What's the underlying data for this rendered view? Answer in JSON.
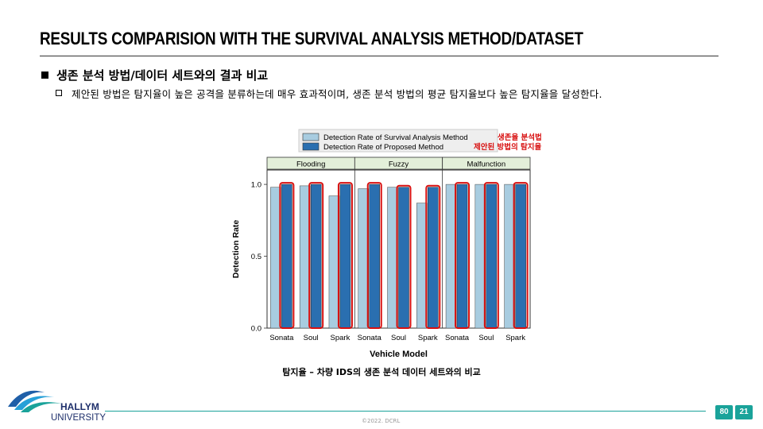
{
  "slide": {
    "title": "RESULTS COMPARISION WITH THE SURVIVAL ANALYSIS METHOD/DATASET",
    "bullet1": "생존 분석 방법/데이터 세트와의 결과 비교",
    "bullet2": "제안된 방법은 탐지율이 높은 공격을 분류하는데 매우 효과적이며, 생존 분석 방법의 평균 탐지율보다 높은 탐지율을 달성한다.",
    "caption": "탐지율 – 차량 IDS의 생존 분석 데이터 세트와의 비교",
    "copyright": "©2022. DCRL",
    "page_left": "80",
    "page_right": "21",
    "university_line1": "HALLYM",
    "university_line2": "UNIVERSITY"
  },
  "colors": {
    "survival": "#a8cce0",
    "proposed": "#2a6fb0",
    "highlight": "#d81010",
    "panel_header": "#e3efd9",
    "teal": "#1aa39a"
  },
  "chart_data": {
    "type": "bar",
    "xlabel": "Vehicle Model",
    "ylabel": "Detection Rate",
    "ylim": [
      0.0,
      1.1
    ],
    "yticks": [
      "0.0",
      "0.5",
      "1.0"
    ],
    "panels": [
      {
        "name": "Flooding",
        "categories": [
          "Sonata",
          "Soul",
          "Spark"
        ]
      },
      {
        "name": "Fuzzy",
        "categories": [
          "Sonata",
          "Soul",
          "Spark"
        ]
      },
      {
        "name": "Malfunction",
        "categories": [
          "Sonata",
          "Soul",
          "Spark"
        ]
      }
    ],
    "series": [
      {
        "name": "Detection Rate of Survival Analysis Method",
        "annotation": "생존율 분석법",
        "values": [
          0.98,
          0.99,
          0.92,
          0.97,
          0.98,
          0.87,
          1.0,
          1.0,
          1.0
        ]
      },
      {
        "name": "Detection Rate of Proposed Method",
        "annotation": "제안된 방법의 탐지율",
        "values": [
          1.0,
          1.0,
          1.0,
          1.0,
          0.98,
          0.98,
          1.0,
          1.0,
          1.0
        ]
      }
    ]
  }
}
